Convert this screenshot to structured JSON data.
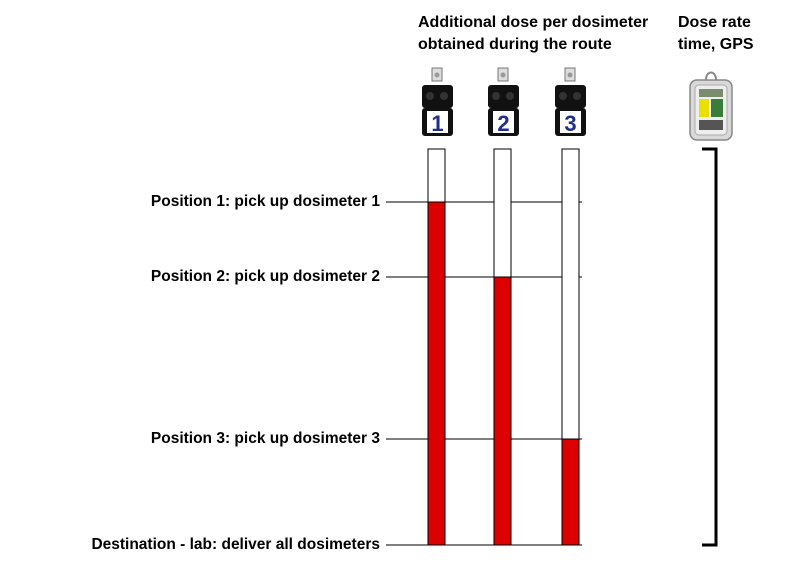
{
  "header": {
    "dose_line1": "Additional dose per dosimeter",
    "dose_line2": "obtained during the route",
    "rate_line1": "Dose rate",
    "rate_line2": "time, GPS"
  },
  "dosimeters": [
    {
      "number": "1",
      "pickup_position": 1
    },
    {
      "number": "2",
      "pickup_position": 2
    },
    {
      "number": "3",
      "pickup_position": 3
    }
  ],
  "positions": [
    {
      "label": "Position 1: pick up dosimeter 1"
    },
    {
      "label": "Position 2: pick up dosimeter 2"
    },
    {
      "label": "Position 3: pick up dosimeter 3"
    },
    {
      "label": "Destination - lab: deliver all dosimeters"
    }
  ],
  "colors": {
    "dose_fill": "#dd0000",
    "badge_number": "#1f2f8a",
    "badge_body": "#111111"
  },
  "icons": [
    "dosimeter-badge-icon",
    "dose-rate-meter-icon"
  ]
}
